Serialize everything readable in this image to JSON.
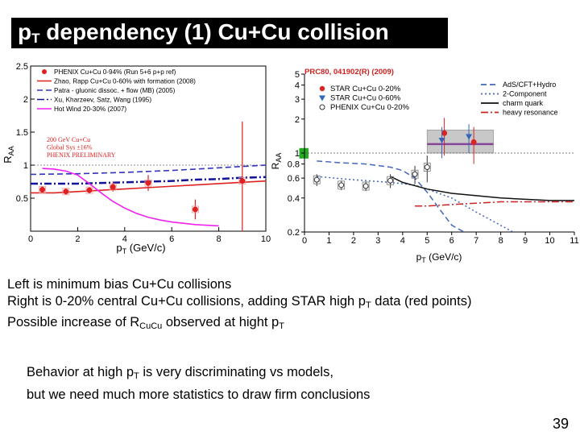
{
  "slide": {
    "title_main": "p",
    "title_sub": "T",
    "title_rest": " dependency (1) Cu+Cu collision",
    "body": [
      {
        "parts": [
          {
            "t": "Left is minimum bias Cu+Cu collisions"
          }
        ]
      },
      {
        "parts": [
          {
            "t": "Right is 0-20% central Cu+Cu collisions, adding STAR high p"
          },
          {
            "t": "T",
            "sub": true
          },
          {
            "t": "  data (red points)"
          }
        ]
      },
      {
        "parts": [
          {
            "t": "Possible increase of R"
          },
          {
            "t": "CuCu",
            "sub": true
          },
          {
            "t": " observed at hight p"
          },
          {
            "t": "T",
            "sub": true
          }
        ]
      }
    ],
    "note": [
      {
        "parts": [
          {
            "t": "Behavior at high p"
          },
          {
            "t": "T",
            "sub": true
          },
          {
            "t": " is very discriminating vs models,"
          }
        ]
      },
      {
        "parts": [
          {
            "t": "but we need much more statistics to draw firm conclusions"
          }
        ]
      }
    ],
    "page_number": "39"
  },
  "chart_data": [
    {
      "type": "scatter",
      "title": "",
      "xlabel": "pT (GeV/c)",
      "ylabel": "RAA",
      "xlim": [
        0,
        10
      ],
      "ylim": [
        0,
        2.5
      ],
      "x_ticks": [
        0,
        2,
        4,
        6,
        8,
        10
      ],
      "y_ticks": [
        0.5,
        1,
        1.5,
        2,
        2.5
      ],
      "y_tick_labels": [
        "0.5",
        "1",
        "1.5",
        "2",
        "2.5"
      ],
      "grid": false,
      "legend_position": "top-left",
      "annotation": {
        "lines": [
          "200 GeV Cu+Cu",
          "Global Sys ±16%",
          "PHENIX PRELIMINARY"
        ],
        "color": "#dd2222"
      },
      "reference_line": 1,
      "points": {
        "name": "PHENIX Cu+Cu 0-94% (Run 5+6 p+p ref)",
        "color": "#e02020",
        "x": [
          0.5,
          1.5,
          2.5,
          3.5,
          5.0,
          7.0,
          9.0
        ],
        "y": [
          0.63,
          0.6,
          0.62,
          0.67,
          0.73,
          0.33,
          0.76
        ],
        "err": [
          0.05,
          0.05,
          0.05,
          0.07,
          0.12,
          0.15,
          0.9
        ]
      },
      "series": [
        {
          "name": "Zhao, Rapp Cu+Cu 0-60% with formation (2008)",
          "color": "#dd2222",
          "dash": "solid",
          "x": [
            0,
            1,
            2,
            3,
            4,
            5,
            6,
            7,
            8,
            9,
            10
          ],
          "y": [
            0.58,
            0.58,
            0.6,
            0.62,
            0.64,
            0.66,
            0.68,
            0.7,
            0.72,
            0.74,
            0.76
          ]
        },
        {
          "name": "Patra - gluonic dissoc. + flow (MB) (2005)",
          "color": "#3333bb",
          "dash": "dashed",
          "x": [
            0,
            2,
            4,
            6,
            8,
            10
          ],
          "y": [
            0.86,
            0.87,
            0.89,
            0.92,
            0.96,
            1.0
          ]
        },
        {
          "name": "Xu, Kharzeev, Satz, Wang (1995)",
          "color": "#111199",
          "dash": "dashdot",
          "x": [
            0,
            1,
            2,
            3,
            4,
            5,
            6,
            7,
            8,
            9,
            10
          ],
          "y": [
            0.72,
            0.72,
            0.72,
            0.73,
            0.74,
            0.75,
            0.76,
            0.78,
            0.79,
            0.81,
            0.82
          ]
        },
        {
          "name": "Hot Wind 20-30% (2007)",
          "color": "#ee22ee",
          "dash": "solid",
          "x": [
            0.5,
            1,
            1.5,
            2,
            2.5,
            3,
            3.5,
            4,
            4.5,
            5,
            5.5,
            6,
            7,
            8
          ],
          "y": [
            0.95,
            0.94,
            0.91,
            0.85,
            0.72,
            0.58,
            0.45,
            0.35,
            0.27,
            0.21,
            0.17,
            0.14,
            0.1,
            0.08
          ]
        }
      ]
    },
    {
      "type": "scatter",
      "title": "PRC80, 041902(R) (2009)",
      "xlabel": "pT (GeV/c)",
      "ylabel": "RAA",
      "xlim": [
        0,
        11
      ],
      "y_scale": "log",
      "ylim": [
        0.2,
        5
      ],
      "x_ticks": [
        0,
        1,
        2,
        3,
        4,
        5,
        6,
        7,
        8,
        9,
        10,
        11
      ],
      "y_ticks": [
        0.2,
        0.4,
        0.6,
        0.8,
        1,
        2,
        3,
        4,
        5
      ],
      "y_tick_labels": [
        "0.2",
        "0.4",
        "0.6",
        "0.8",
        "1",
        "2",
        "3",
        "4",
        "5"
      ],
      "grid": false,
      "legend_position": "top",
      "reference_line": 1,
      "point_series": [
        {
          "name": "STAR Cu+Cu 0-20%",
          "color": "#dd2222",
          "marker": "circle",
          "x": [
            5.7,
            6.9
          ],
          "y": [
            1.5,
            1.25
          ],
          "err_lo": [
            0.55,
            0.45
          ],
          "err_hi": [
            0.55,
            0.45
          ]
        },
        {
          "name": "STAR Cu+Cu 0-60%",
          "color": "#3366bb",
          "marker": "triangle-down",
          "x": [
            5.6,
            6.7
          ],
          "y": [
            1.3,
            1.4
          ],
          "err_lo": [
            0.4,
            0.4
          ],
          "err_hi": [
            0.4,
            0.4
          ]
        },
        {
          "name": "PHENIX Cu+Cu 0-20%",
          "color": "#333333",
          "marker": "open-circle",
          "x": [
            0.5,
            1.5,
            2.5,
            3.5,
            4.5,
            5.0
          ],
          "y": [
            0.58,
            0.52,
            0.51,
            0.57,
            0.65,
            0.75
          ],
          "err_lo": [
            0.07,
            0.05,
            0.05,
            0.08,
            0.12,
            0.2
          ],
          "err_hi": [
            0.07,
            0.05,
            0.05,
            0.08,
            0.12,
            0.2
          ]
        }
      ],
      "series": [
        {
          "name": "AdS/CFT+Hydro",
          "color": "#4466bb",
          "dash": "dashed",
          "x": [
            0.5,
            1.5,
            2.5,
            3.5,
            4.0,
            4.5,
            5.0,
            5.5,
            6.0,
            6.5
          ],
          "y": [
            0.85,
            0.82,
            0.8,
            0.75,
            0.7,
            0.6,
            0.45,
            0.32,
            0.23,
            0.2
          ]
        },
        {
          "name": "2-Component",
          "color": "#4466bb",
          "dash": "dotted",
          "x": [
            0.5,
            2,
            3.5,
            4.5,
            5,
            6,
            7,
            8.5
          ],
          "y": [
            0.62,
            0.58,
            0.55,
            0.52,
            0.48,
            0.4,
            0.3,
            0.2
          ]
        },
        {
          "name": "charm quark",
          "color": "#111111",
          "dash": "solid",
          "x": [
            3.5,
            4,
            5,
            6,
            7,
            8,
            9,
            10,
            11
          ],
          "y": [
            0.62,
            0.55,
            0.48,
            0.44,
            0.42,
            0.4,
            0.39,
            0.38,
            0.38
          ]
        },
        {
          "name": "heavy resonance",
          "color": "#cc2222",
          "dash": "dashdot",
          "x": [
            4.5,
            5,
            6,
            7,
            8,
            9,
            10,
            11
          ],
          "y": [
            0.34,
            0.34,
            0.35,
            0.36,
            0.37,
            0.37,
            0.37,
            0.37
          ]
        }
      ],
      "bands": [
        {
          "name": "STAR 0-20% systematic band",
          "color": "#c8c8c8",
          "x_range": [
            5.0,
            7.7
          ],
          "y_range": [
            1.0,
            1.6
          ]
        },
        {
          "name": "global systematic box",
          "color": "#22aa22",
          "x_range": [
            -0.2,
            0.15
          ],
          "y_range": [
            0.9,
            1.1
          ]
        }
      ],
      "reference_segment": {
        "color": "#884499",
        "x_range": [
          5.0,
          7.7
        ],
        "y": 1.2
      }
    }
  ]
}
